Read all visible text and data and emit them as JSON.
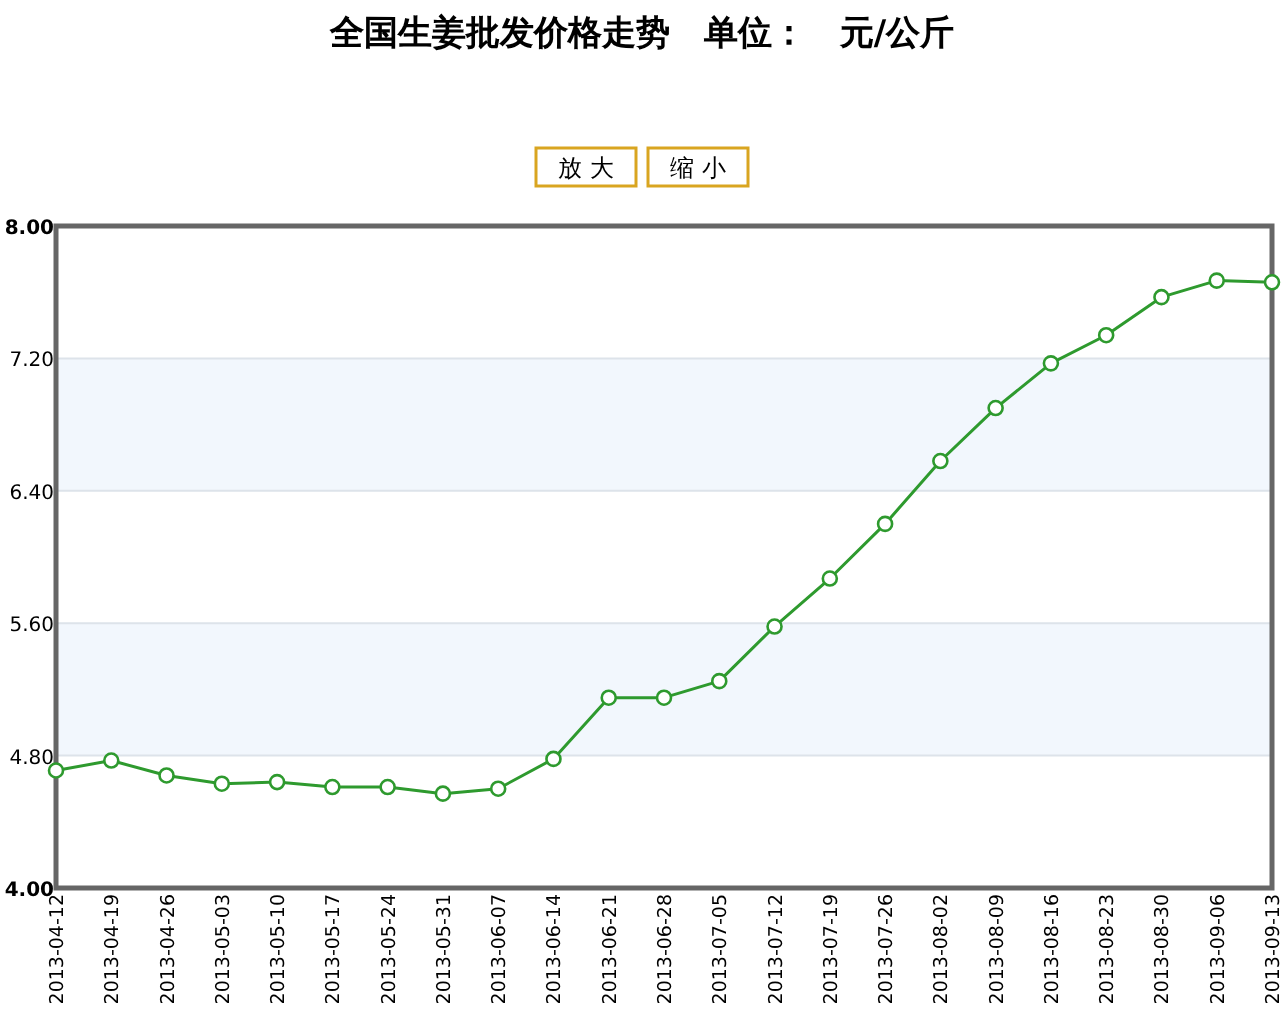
{
  "chart_data": {
    "type": "line",
    "title": "全国生姜批发价格走势　单位：　元/公斤",
    "annotations": [
      "放 大",
      "缩 小"
    ],
    "categories": [
      "2013-04-12",
      "2013-04-19",
      "2013-04-26",
      "2013-05-03",
      "2013-05-10",
      "2013-05-17",
      "2013-05-24",
      "2013-05-31",
      "2013-06-07",
      "2013-06-14",
      "2013-06-21",
      "2013-06-28",
      "2013-07-05",
      "2013-07-12",
      "2013-07-19",
      "2013-07-26",
      "2013-08-02",
      "2013-08-09",
      "2013-08-16",
      "2013-08-23",
      "2013-08-30",
      "2013-09-06",
      "2013-09-13"
    ],
    "series": [
      {
        "color": "#2e9a2e",
        "values": [
          4.71,
          4.77,
          4.68,
          4.63,
          4.64,
          4.61,
          4.61,
          4.57,
          4.6,
          4.78,
          5.15,
          5.15,
          5.25,
          5.58,
          5.87,
          6.2,
          6.58,
          6.9,
          7.17,
          7.34,
          7.57,
          7.67,
          7.66
        ]
      }
    ],
    "ylim": [
      4,
      8
    ],
    "yticks": [
      {
        "value": 4,
        "label": "4.00"
      },
      {
        "value": 4.8,
        "label": "4.80"
      },
      {
        "value": 5.6,
        "label": "5.60"
      },
      {
        "value": 6.4,
        "label": "6.40"
      },
      {
        "value": 7.2,
        "label": "7.20"
      },
      {
        "value": 8,
        "label": "8.00"
      }
    ],
    "bands": [
      {
        "axis": "y",
        "from": 4.8,
        "to": 5.6,
        "color": "#f2f7fd"
      },
      {
        "axis": "y",
        "from": 6.4,
        "to": 7.2,
        "color": "#f2f7fd"
      }
    ],
    "grid": "y",
    "marker": "circle",
    "line_style": "solid"
  }
}
